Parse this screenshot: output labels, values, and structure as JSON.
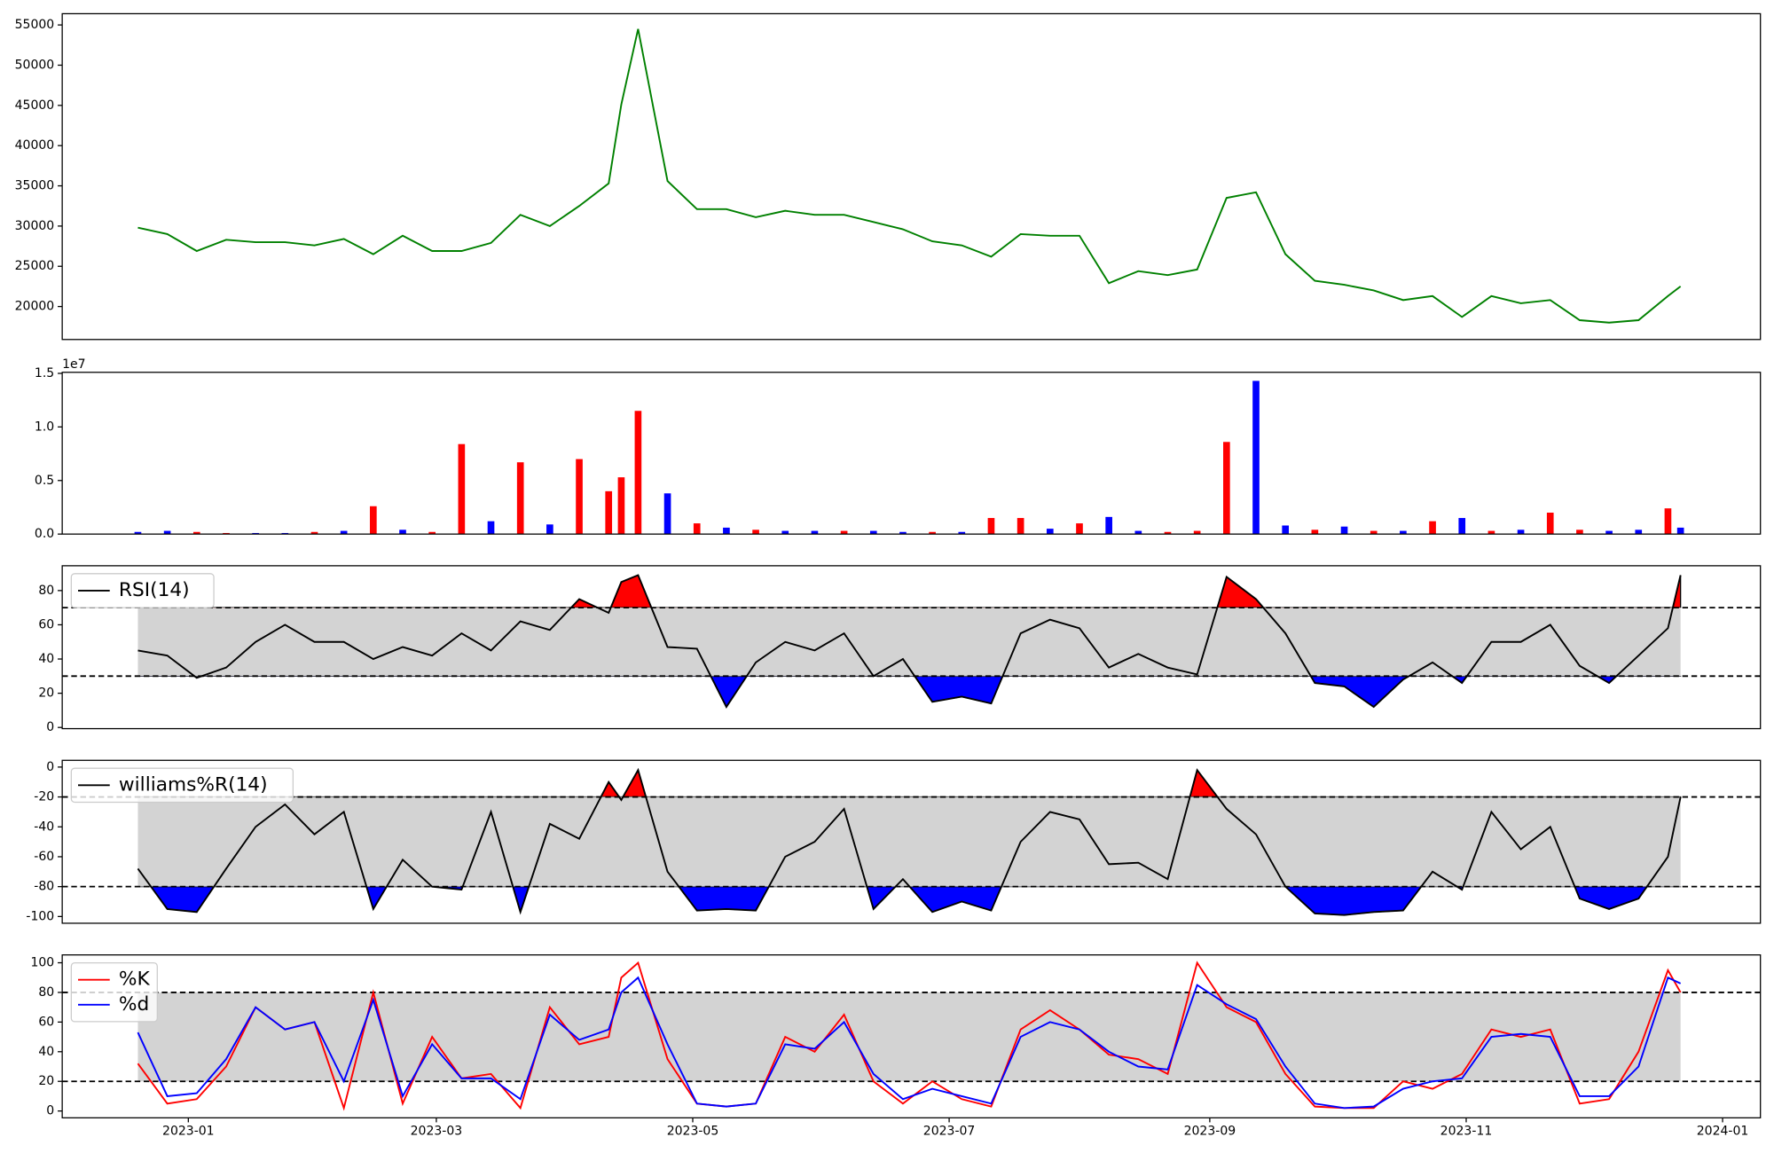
{
  "chart_data": [
    {
      "type": "line",
      "color": "green",
      "x": [
        "2022-12-20",
        "2022-12-27",
        "2023-01-03",
        "2023-01-10",
        "2023-01-17",
        "2023-01-24",
        "2023-01-31",
        "2023-02-07",
        "2023-02-14",
        "2023-02-21",
        "2023-02-28",
        "2023-03-07",
        "2023-03-14",
        "2023-03-21",
        "2023-03-28",
        "2023-04-04",
        "2023-04-11",
        "2023-04-14",
        "2023-04-18",
        "2023-04-25",
        "2023-05-02",
        "2023-05-09",
        "2023-05-16",
        "2023-05-23",
        "2023-05-30",
        "2023-06-06",
        "2023-06-13",
        "2023-06-20",
        "2023-06-27",
        "2023-07-04",
        "2023-07-11",
        "2023-07-18",
        "2023-07-25",
        "2023-08-01",
        "2023-08-08",
        "2023-08-15",
        "2023-08-22",
        "2023-08-29",
        "2023-09-05",
        "2023-09-12",
        "2023-09-19",
        "2023-09-26",
        "2023-10-03",
        "2023-10-10",
        "2023-10-17",
        "2023-10-24",
        "2023-10-31",
        "2023-11-07",
        "2023-11-14",
        "2023-11-21",
        "2023-11-28",
        "2023-12-05",
        "2023-12-12",
        "2023-12-19",
        "2023-12-22"
      ],
      "values": [
        29800,
        29000,
        26900,
        28300,
        28000,
        28000,
        27600,
        28400,
        26500,
        28800,
        26900,
        26900,
        27900,
        31400,
        30000,
        32500,
        35300,
        45100,
        54500,
        35600,
        32100,
        32100,
        31100,
        31900,
        31400,
        31400,
        30500,
        29600,
        28100,
        27600,
        26200,
        29000,
        28800,
        28800,
        22900,
        24400,
        23900,
        24600,
        33500,
        34200,
        26500,
        23200,
        22700,
        22000,
        20800,
        21300,
        18700,
        21300,
        20400,
        20800,
        18300,
        18000,
        18300,
        21300,
        22500
      ],
      "xlim": [
        "2022-12-02",
        "2024-01-10"
      ],
      "ylim": [
        15900,
        56400
      ],
      "yticks": [
        20000,
        25000,
        30000,
        35000,
        40000,
        45000,
        50000,
        55000
      ]
    },
    {
      "type": "bar",
      "x": [
        "2022-12-20",
        "2022-12-27",
        "2023-01-03",
        "2023-01-10",
        "2023-01-17",
        "2023-01-24",
        "2023-01-31",
        "2023-02-07",
        "2023-02-14",
        "2023-02-21",
        "2023-02-28",
        "2023-03-07",
        "2023-03-14",
        "2023-03-21",
        "2023-03-28",
        "2023-04-04",
        "2023-04-11",
        "2023-04-14",
        "2023-04-18",
        "2023-04-25",
        "2023-05-02",
        "2023-05-09",
        "2023-05-16",
        "2023-05-23",
        "2023-05-30",
        "2023-06-06",
        "2023-06-13",
        "2023-06-20",
        "2023-06-27",
        "2023-07-04",
        "2023-07-11",
        "2023-07-18",
        "2023-07-25",
        "2023-08-01",
        "2023-08-08",
        "2023-08-15",
        "2023-08-22",
        "2023-08-29",
        "2023-09-05",
        "2023-09-12",
        "2023-09-19",
        "2023-09-26",
        "2023-10-03",
        "2023-10-10",
        "2023-10-17",
        "2023-10-24",
        "2023-10-31",
        "2023-11-07",
        "2023-11-14",
        "2023-11-21",
        "2023-11-28",
        "2023-12-05",
        "2023-12-12",
        "2023-12-19",
        "2023-12-22"
      ],
      "values": [
        200000,
        300000,
        200000,
        100000,
        100000,
        100000,
        200000,
        300000,
        2600000,
        400000,
        200000,
        8400000,
        1200000,
        6700000,
        900000,
        7000000,
        4000000,
        5300000,
        11500000,
        3800000,
        1000000,
        600000,
        400000,
        300000,
        300000,
        300000,
        300000,
        200000,
        200000,
        200000,
        1500000,
        1500000,
        500000,
        1000000,
        1600000,
        300000,
        200000,
        300000,
        8600000,
        14300000,
        800000,
        400000,
        700000,
        300000,
        300000,
        1200000,
        1500000,
        300000,
        400000,
        2000000,
        400000,
        300000,
        400000,
        2400000,
        600000
      ],
      "colors": [
        "blue",
        "blue",
        "red",
        "red",
        "blue",
        "blue",
        "red",
        "blue",
        "red",
        "blue",
        "red",
        "red",
        "blue",
        "red",
        "blue",
        "red",
        "red",
        "red",
        "red",
        "blue",
        "red",
        "blue",
        "red",
        "blue",
        "blue",
        "red",
        "blue",
        "blue",
        "red",
        "blue",
        "red",
        "red",
        "blue",
        "red",
        "blue",
        "blue",
        "red",
        "red",
        "red",
        "blue",
        "blue",
        "red",
        "blue",
        "red",
        "blue",
        "red",
        "blue",
        "red",
        "blue",
        "red",
        "red",
        "blue",
        "blue",
        "red",
        "blue"
      ],
      "xlim": [
        "2022-12-02",
        "2024-01-10"
      ],
      "ylim": [
        0,
        15100000
      ],
      "offset_label": "1e7",
      "yticks": [
        {
          "value": 0,
          "label": "0.0"
        },
        {
          "value": 5000000,
          "label": "0.5"
        },
        {
          "value": 10000000,
          "label": "1.0"
        },
        {
          "value": 15000000,
          "label": "1.5"
        }
      ]
    },
    {
      "type": "line",
      "x": [
        "2022-12-20",
        "2022-12-27",
        "2023-01-03",
        "2023-01-10",
        "2023-01-17",
        "2023-01-24",
        "2023-01-31",
        "2023-02-07",
        "2023-02-14",
        "2023-02-21",
        "2023-02-28",
        "2023-03-07",
        "2023-03-14",
        "2023-03-21",
        "2023-03-28",
        "2023-04-04",
        "2023-04-11",
        "2023-04-14",
        "2023-04-18",
        "2023-04-25",
        "2023-05-02",
        "2023-05-09",
        "2023-05-16",
        "2023-05-23",
        "2023-05-30",
        "2023-06-06",
        "2023-06-13",
        "2023-06-20",
        "2023-06-27",
        "2023-07-04",
        "2023-07-11",
        "2023-07-18",
        "2023-07-25",
        "2023-08-01",
        "2023-08-08",
        "2023-08-15",
        "2023-08-22",
        "2023-08-29",
        "2023-09-05",
        "2023-09-12",
        "2023-09-19",
        "2023-09-26",
        "2023-10-03",
        "2023-10-10",
        "2023-10-17",
        "2023-10-24",
        "2023-10-31",
        "2023-11-07",
        "2023-11-14",
        "2023-11-21",
        "2023-11-28",
        "2023-12-05",
        "2023-12-12",
        "2023-12-19",
        "2023-12-22"
      ],
      "series": [
        {
          "name": "RSI(14)",
          "color": "black",
          "values": [
            45,
            42,
            29,
            35,
            50,
            60,
            50,
            50,
            40,
            47,
            42,
            55,
            45,
            62,
            57,
            75,
            67,
            85,
            89,
            47,
            46,
            12,
            38,
            50,
            45,
            55,
            30,
            40,
            15,
            18,
            14,
            55,
            63,
            58,
            35,
            43,
            35,
            31,
            88,
            75,
            55,
            26,
            24,
            12,
            28,
            38,
            26,
            50,
            50,
            60,
            36,
            26,
            42,
            58,
            89
          ]
        }
      ],
      "hlines": [
        70,
        30
      ],
      "band_color": "lightgray",
      "above_color": "red",
      "below_color": "blue",
      "xlim": [
        "2022-12-02",
        "2024-01-10"
      ],
      "ylim": [
        -0.7,
        94.5
      ],
      "yticks": [
        0,
        20,
        40,
        60,
        80
      ]
    },
    {
      "type": "line",
      "x": [
        "2022-12-20",
        "2022-12-27",
        "2023-01-03",
        "2023-01-10",
        "2023-01-17",
        "2023-01-24",
        "2023-01-31",
        "2023-02-07",
        "2023-02-14",
        "2023-02-21",
        "2023-02-28",
        "2023-03-07",
        "2023-03-14",
        "2023-03-21",
        "2023-03-28",
        "2023-04-04",
        "2023-04-11",
        "2023-04-14",
        "2023-04-18",
        "2023-04-25",
        "2023-05-02",
        "2023-05-09",
        "2023-05-16",
        "2023-05-23",
        "2023-05-30",
        "2023-06-06",
        "2023-06-13",
        "2023-06-20",
        "2023-06-27",
        "2023-07-04",
        "2023-07-11",
        "2023-07-18",
        "2023-07-25",
        "2023-08-01",
        "2023-08-08",
        "2023-08-15",
        "2023-08-22",
        "2023-08-29",
        "2023-09-05",
        "2023-09-12",
        "2023-09-19",
        "2023-09-26",
        "2023-10-03",
        "2023-10-10",
        "2023-10-17",
        "2023-10-24",
        "2023-10-31",
        "2023-11-07",
        "2023-11-14",
        "2023-11-21",
        "2023-11-28",
        "2023-12-05",
        "2023-12-12",
        "2023-12-19",
        "2023-12-22"
      ],
      "series": [
        {
          "name": "williams%R(14)",
          "color": "black",
          "values": [
            -68,
            -95,
            -97,
            -68,
            -40,
            -25,
            -45,
            -30,
            -95,
            -62,
            -80,
            -82,
            -30,
            -97,
            -38,
            -48,
            -10,
            -22,
            -2,
            -70,
            -96,
            -95,
            -96,
            -60,
            -50,
            -28,
            -95,
            -75,
            -97,
            -90,
            -96,
            -50,
            -30,
            -35,
            -65,
            -64,
            -75,
            -2,
            -28,
            -45,
            -80,
            -98,
            -99,
            -97,
            -96,
            -70,
            -82,
            -30,
            -55,
            -40,
            -88,
            -95,
            -88,
            -60,
            -20
          ]
        }
      ],
      "hlines": [
        -20,
        -80
      ],
      "band_color": "lightgray",
      "above_color": "red",
      "below_color": "blue",
      "xlim": [
        "2022-12-02",
        "2024-01-10"
      ],
      "ylim": [
        -104.5,
        4.5
      ],
      "yticks": [
        -100,
        -80,
        -60,
        -40,
        -20,
        0
      ]
    },
    {
      "type": "line",
      "x": [
        "2022-12-20",
        "2022-12-27",
        "2023-01-03",
        "2023-01-10",
        "2023-01-17",
        "2023-01-24",
        "2023-01-31",
        "2023-02-07",
        "2023-02-14",
        "2023-02-21",
        "2023-02-28",
        "2023-03-07",
        "2023-03-14",
        "2023-03-21",
        "2023-03-28",
        "2023-04-04",
        "2023-04-11",
        "2023-04-14",
        "2023-04-18",
        "2023-04-25",
        "2023-05-02",
        "2023-05-09",
        "2023-05-16",
        "2023-05-23",
        "2023-05-30",
        "2023-06-06",
        "2023-06-13",
        "2023-06-20",
        "2023-06-27",
        "2023-07-04",
        "2023-07-11",
        "2023-07-18",
        "2023-07-25",
        "2023-08-01",
        "2023-08-08",
        "2023-08-15",
        "2023-08-22",
        "2023-08-29",
        "2023-09-05",
        "2023-09-12",
        "2023-09-19",
        "2023-09-26",
        "2023-10-03",
        "2023-10-10",
        "2023-10-17",
        "2023-10-24",
        "2023-10-31",
        "2023-11-07",
        "2023-11-14",
        "2023-11-21",
        "2023-11-28",
        "2023-12-05",
        "2023-12-12",
        "2023-12-19",
        "2023-12-22"
      ],
      "series": [
        {
          "name": "%K",
          "color": "red",
          "values": [
            32,
            5,
            8,
            30,
            70,
            55,
            60,
            2,
            80,
            5,
            50,
            22,
            25,
            2,
            70,
            45,
            50,
            90,
            100,
            35,
            5,
            3,
            5,
            50,
            40,
            65,
            20,
            5,
            20,
            8,
            3,
            55,
            68,
            55,
            38,
            35,
            25,
            100,
            70,
            60,
            25,
            3,
            2,
            2,
            20,
            15,
            25,
            55,
            50,
            55,
            5,
            8,
            40,
            95,
            80
          ]
        },
        {
          "name": "%d",
          "color": "blue",
          "values": [
            53,
            10,
            12,
            35,
            70,
            55,
            60,
            20,
            75,
            10,
            45,
            22,
            22,
            8,
            65,
            48,
            55,
            80,
            90,
            45,
            5,
            3,
            5,
            45,
            42,
            60,
            25,
            8,
            15,
            10,
            5,
            50,
            60,
            55,
            40,
            30,
            28,
            85,
            72,
            62,
            30,
            5,
            2,
            3,
            15,
            20,
            22,
            50,
            52,
            50,
            10,
            10,
            30,
            90,
            86
          ]
        }
      ],
      "hlines": [
        80,
        20
      ],
      "band_color": "lightgray",
      "xlim": [
        "2022-12-02",
        "2024-01-10"
      ],
      "ylim": [
        -4.6,
        105.3
      ],
      "yticks": [
        0,
        20,
        40,
        60,
        80,
        100
      ],
      "xticks": [
        {
          "value": "2023-01-01",
          "label": "2023-01"
        },
        {
          "value": "2023-03-01",
          "label": "2023-03"
        },
        {
          "value": "2023-05-01",
          "label": "2023-05"
        },
        {
          "value": "2023-07-01",
          "label": "2023-07"
        },
        {
          "value": "2023-09-01",
          "label": "2023-09"
        },
        {
          "value": "2023-11-01",
          "label": "2023-11"
        },
        {
          "value": "2024-01-01",
          "label": "2024-01"
        }
      ]
    }
  ]
}
